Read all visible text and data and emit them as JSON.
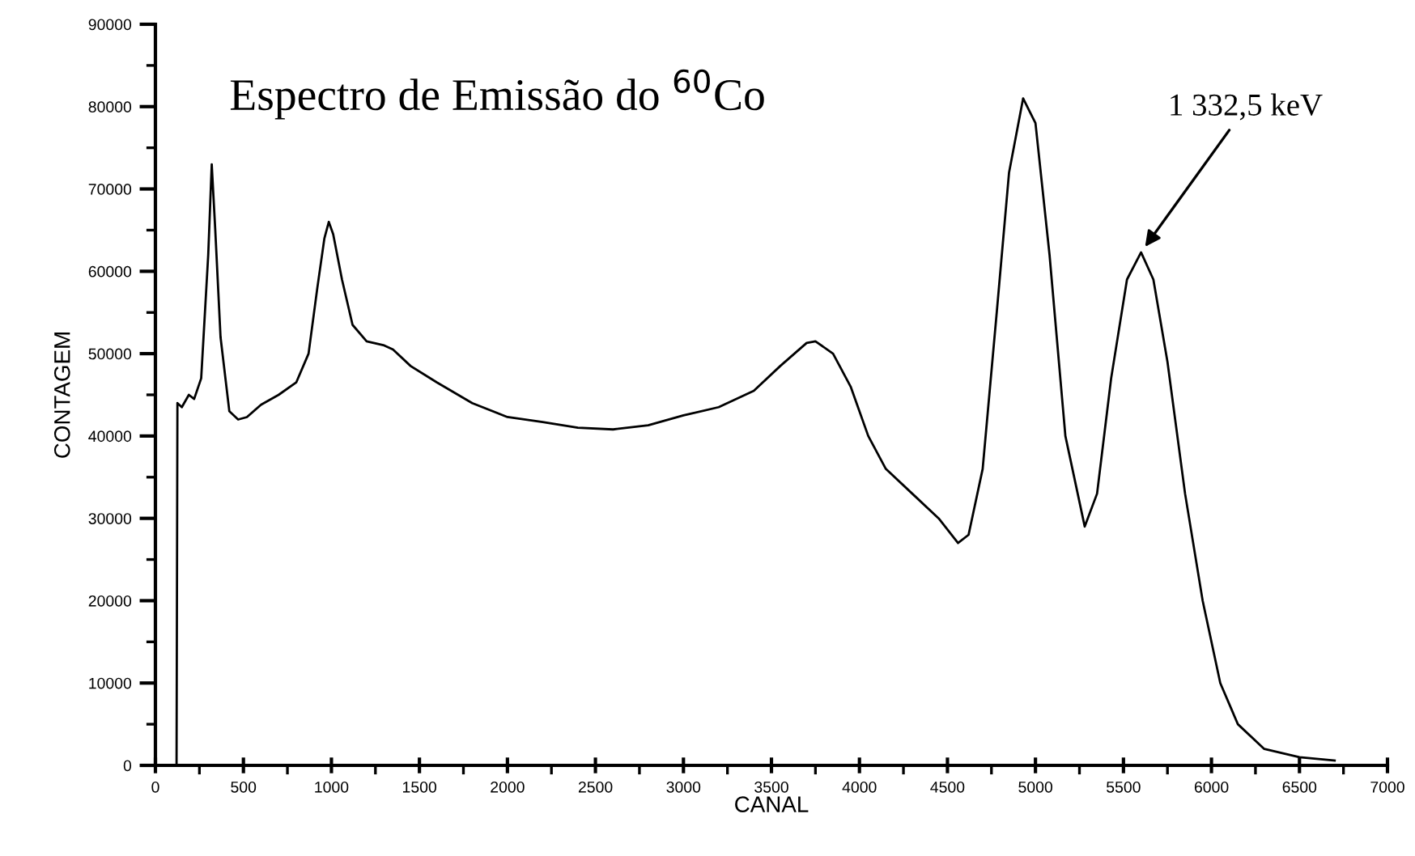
{
  "chart_data": {
    "type": "line",
    "title": "Espectro de Emissão do $^{60}$Co",
    "xlabel": "CANAL",
    "ylabel": "CONTAGEM",
    "x": [
      120,
      125,
      150,
      190,
      220,
      260,
      300,
      320,
      340,
      370,
      420,
      470,
      520,
      600,
      700,
      800,
      870,
      920,
      960,
      985,
      1010,
      1060,
      1120,
      1200,
      1300,
      1350,
      1450,
      1600,
      1800,
      2000,
      2200,
      2400,
      2600,
      2800,
      3000,
      3200,
      3400,
      3550,
      3700,
      3750,
      3850,
      3950,
      4050,
      4150,
      4300,
      4450,
      4560,
      4620,
      4700,
      4780,
      4850,
      4930,
      5000,
      5080,
      5170,
      5280,
      5350,
      5430,
      5520,
      5600,
      5670,
      5750,
      5850,
      5950,
      6050,
      6150,
      6300,
      6500,
      6700
    ],
    "series": [
      {
        "color": "#000000",
        "values": [
          0,
          44000,
          43500,
          45000,
          44500,
          47000,
          62000,
          73000,
          65000,
          52000,
          43000,
          42000,
          42300,
          43800,
          45000,
          46500,
          50000,
          58000,
          64000,
          66000,
          64500,
          59000,
          53500,
          51500,
          51000,
          50500,
          48500,
          46500,
          44000,
          42300,
          41700,
          41000,
          40800,
          41300,
          42500,
          43500,
          45500,
          48500,
          51300,
          51500,
          50000,
          46000,
          40000,
          36000,
          33000,
          30000,
          27000,
          28000,
          36000,
          55000,
          72000,
          81000,
          78000,
          62000,
          40000,
          29000,
          33000,
          47000,
          59000,
          62300,
          59000,
          49000,
          33000,
          20000,
          10000,
          5000,
          2000,
          1000,
          600
        ]
      }
    ],
    "xlim": [
      0,
      7000
    ],
    "ylim": [
      0,
      90000
    ],
    "xticks": [
      0,
      500,
      1000,
      1500,
      2000,
      2500,
      3000,
      3500,
      4000,
      4500,
      5000,
      5500,
      6000,
      6500,
      7000
    ],
    "yticks": [
      0,
      10000,
      20000,
      30000,
      40000,
      50000,
      60000,
      70000,
      80000,
      90000
    ],
    "annotations": [
      {
        "text": "1 332,5 keV",
        "x": 5600,
        "y": 62300
      }
    ],
    "grid": false,
    "legend": false,
    "marker": "none",
    "line_style": "solid"
  }
}
